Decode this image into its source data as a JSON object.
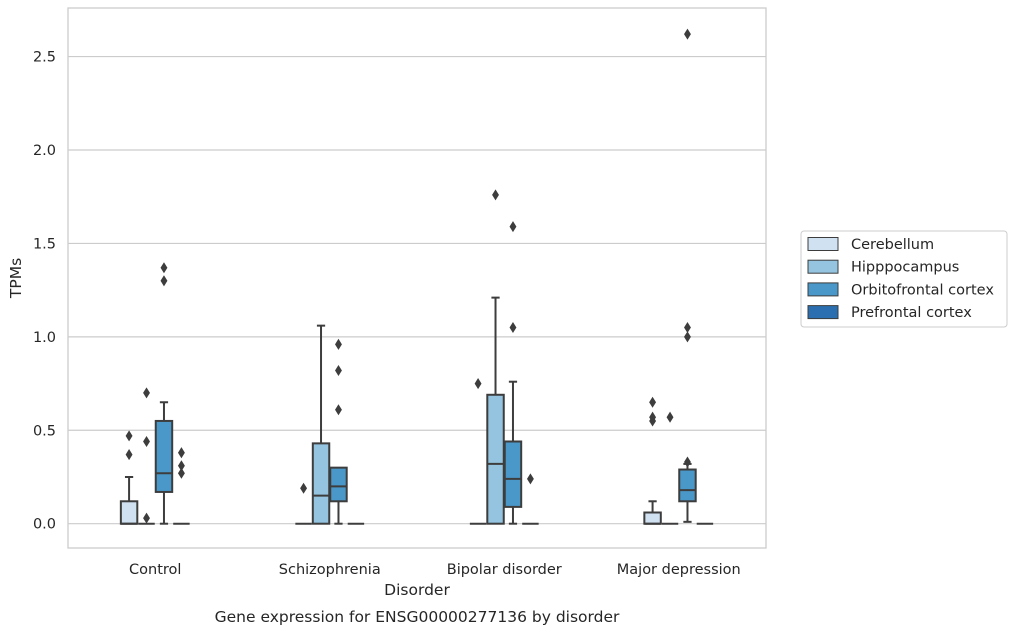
{
  "caption": "Gene expression for ENSG00000277136 by disorder",
  "chart_data": {
    "type": "box",
    "xlabel": "Disorder",
    "ylabel": "TPMs",
    "ylim": [
      -0.13,
      2.76
    ],
    "yticks": [
      "0.0",
      "0.5",
      "1.0",
      "1.5",
      "2.0",
      "2.5"
    ],
    "grid": "horizontal",
    "legend_position": "right-center",
    "categories": [
      "Control",
      "Schizophrenia",
      "Bipolar disorder",
      "Major depression"
    ],
    "series": [
      {
        "name": "Cerebellum",
        "color": "#d0e1f2",
        "boxes": [
          {
            "whislo": 0.0,
            "q1": 0.0,
            "med": 0.0,
            "q3": 0.12,
            "whishi": 0.25,
            "fliers": [
              0.37,
              0.47
            ]
          },
          {
            "whislo": 0.0,
            "q1": 0.0,
            "med": 0.0,
            "q3": 0.0,
            "whishi": 0.0,
            "fliers": [
              0.19
            ]
          },
          {
            "whislo": 0.0,
            "q1": 0.0,
            "med": 0.0,
            "q3": 0.0,
            "whishi": 0.0,
            "fliers": [
              0.75
            ]
          },
          {
            "whislo": 0.0,
            "q1": 0.0,
            "med": 0.0,
            "q3": 0.06,
            "whishi": 0.12,
            "fliers": [
              0.55,
              0.57,
              0.65
            ]
          }
        ]
      },
      {
        "name": "Hipppocampus",
        "color": "#94c4df",
        "boxes": [
          {
            "whislo": 0.0,
            "q1": 0.0,
            "med": 0.0,
            "q3": 0.0,
            "whishi": 0.0,
            "fliers": [
              0.03,
              0.44,
              0.7
            ]
          },
          {
            "whislo": 0.0,
            "q1": 0.0,
            "med": 0.15,
            "q3": 0.43,
            "whishi": 1.06,
            "fliers": []
          },
          {
            "whislo": 0.0,
            "q1": 0.0,
            "med": 0.32,
            "q3": 0.69,
            "whishi": 1.21,
            "fliers": [
              1.76
            ]
          },
          {
            "whislo": 0.0,
            "q1": 0.0,
            "med": 0.0,
            "q3": 0.0,
            "whishi": 0.0,
            "fliers": [
              0.57
            ]
          }
        ]
      },
      {
        "name": "Orbitofrontal cortex",
        "color": "#4a98c9",
        "boxes": [
          {
            "whislo": 0.0,
            "q1": 0.17,
            "med": 0.27,
            "q3": 0.55,
            "whishi": 0.65,
            "fliers": [
              1.3,
              1.37
            ]
          },
          {
            "whislo": 0.0,
            "q1": 0.12,
            "med": 0.2,
            "q3": 0.3,
            "whishi": 0.3,
            "fliers": [
              0.61,
              0.82,
              0.96
            ]
          },
          {
            "whislo": 0.0,
            "q1": 0.09,
            "med": 0.24,
            "q3": 0.44,
            "whishi": 0.76,
            "fliers": [
              1.05,
              1.59
            ]
          },
          {
            "whislo": 0.01,
            "q1": 0.12,
            "med": 0.18,
            "q3": 0.29,
            "whishi": 0.32,
            "fliers": [
              0.33,
              1.0,
              1.05,
              2.62
            ]
          }
        ]
      },
      {
        "name": "Prefrontal cortex",
        "color": "#2b6fb0",
        "boxes": [
          {
            "whislo": 0.0,
            "q1": 0.0,
            "med": 0.0,
            "q3": 0.0,
            "whishi": 0.0,
            "fliers": [
              0.27,
              0.31,
              0.38
            ]
          },
          {
            "whislo": 0.0,
            "q1": 0.0,
            "med": 0.0,
            "q3": 0.0,
            "whishi": 0.0,
            "fliers": []
          },
          {
            "whislo": 0.0,
            "q1": 0.0,
            "med": 0.0,
            "q3": 0.0,
            "whishi": 0.0,
            "fliers": [
              0.24
            ]
          },
          {
            "whislo": 0.0,
            "q1": 0.0,
            "med": 0.0,
            "q3": 0.0,
            "whishi": 0.0,
            "fliers": []
          }
        ]
      }
    ]
  }
}
